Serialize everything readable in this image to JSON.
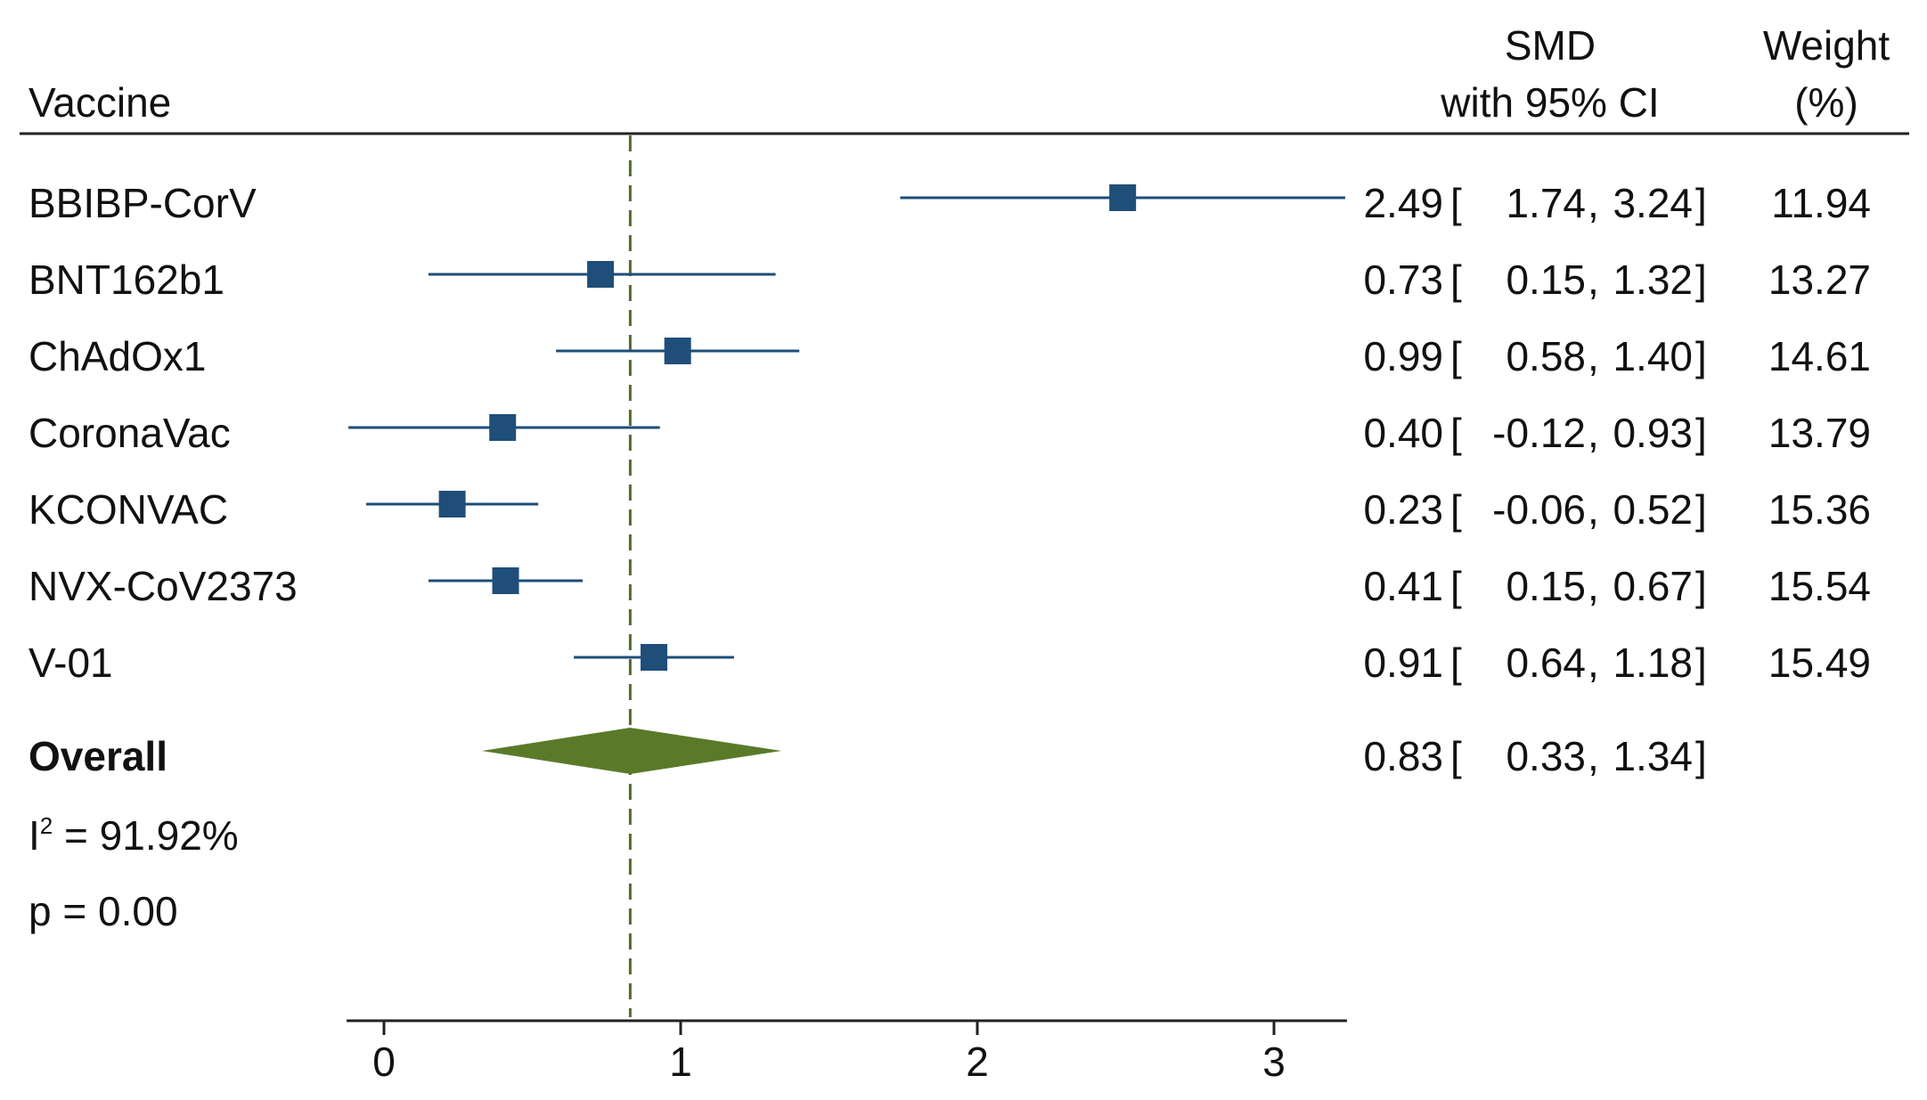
{
  "chart_data": {
    "type": "forest",
    "headers": {
      "label": "Vaccine",
      "estimate_line1": "SMD",
      "estimate_line2": "with 95% CI",
      "weight_line1": "Weight",
      "weight_line2": "(%)"
    },
    "studies": [
      {
        "label": "BBIBP-CorV",
        "smd": 2.49,
        "lower": 1.74,
        "upper": 3.24,
        "weight": 11.94,
        "est": "2.49",
        "lo": "1.74",
        "hi": "3.24",
        "w": "11.94"
      },
      {
        "label": "BNT162b1",
        "smd": 0.73,
        "lower": 0.15,
        "upper": 1.32,
        "weight": 13.27,
        "est": "0.73",
        "lo": "0.15",
        "hi": "1.32",
        "w": "13.27"
      },
      {
        "label": "ChAdOx1",
        "smd": 0.99,
        "lower": 0.58,
        "upper": 1.4,
        "weight": 14.61,
        "est": "0.99",
        "lo": "0.58",
        "hi": "1.40",
        "w": "14.61"
      },
      {
        "label": "CoronaVac",
        "smd": 0.4,
        "lower": -0.12,
        "upper": 0.93,
        "weight": 13.79,
        "est": "0.40",
        "lo": "-0.12",
        "hi": "0.93",
        "w": "13.79"
      },
      {
        "label": "KCONVAC",
        "smd": 0.23,
        "lower": -0.06,
        "upper": 0.52,
        "weight": 15.36,
        "est": "0.23",
        "lo": "-0.06",
        "hi": "0.52",
        "w": "15.36"
      },
      {
        "label": "NVX-CoV2373",
        "smd": 0.41,
        "lower": 0.15,
        "upper": 0.67,
        "weight": 15.54,
        "est": "0.41",
        "lo": "0.15",
        "hi": "0.67",
        "w": "15.54"
      },
      {
        "label": "V-01",
        "smd": 0.91,
        "lower": 0.64,
        "upper": 1.18,
        "weight": 15.49,
        "est": "0.91",
        "lo": "0.64",
        "hi": "1.18",
        "w": "15.49"
      }
    ],
    "overall": {
      "label": "Overall",
      "smd": 0.83,
      "lower": 0.33,
      "upper": 1.34,
      "est": "0.83",
      "lo": "0.33",
      "hi": "1.34"
    },
    "heterogeneity": {
      "i2_prefix": "I",
      "i2_sup": "2",
      "i2_text": " = 91.92%",
      "p_text": "p = 0.00"
    },
    "x_axis": {
      "range": [
        -0.12,
        3.24
      ],
      "ticks": [
        0,
        1,
        2,
        3
      ],
      "tick_labels": [
        "0",
        "1",
        "2",
        "3"
      ]
    },
    "reference_line": 0.83,
    "colors": {
      "marker": "#1f4e79",
      "ci_line": "#1f4e79",
      "diamond": "#5a7a2a",
      "ref_line": "#556b2f",
      "rule": "#222222"
    }
  }
}
